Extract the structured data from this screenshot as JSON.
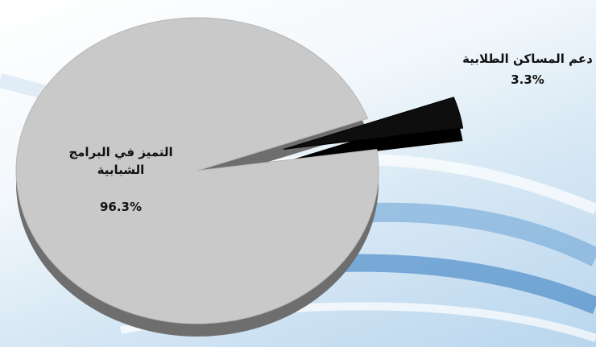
{
  "chart_data": {
    "type": "pie",
    "categories": [
      "التميز في البرامج الشبابية",
      "دعم المساكن الطلابية"
    ],
    "values": [
      96.3,
      3.3
    ],
    "value_labels": [
      "96.3%",
      "3.3%"
    ],
    "colors": [
      "#c9c9c9",
      "#0e0e0e"
    ]
  }
}
